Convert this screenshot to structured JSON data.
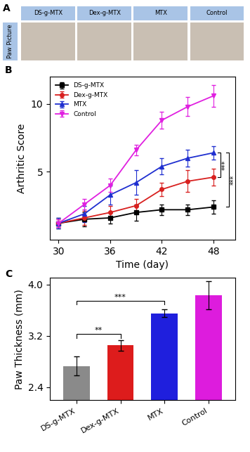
{
  "photos": {
    "label": "A",
    "row_label": "Paw Picture",
    "columns": [
      "DS-g-MTX",
      "Dex-g-MTX",
      "MTX",
      "Control"
    ]
  },
  "chart_data": [
    {
      "type": "line",
      "title": "B",
      "xlabel": "Time (day)",
      "ylabel": "Arthritic Score",
      "x": [
        30,
        33,
        36,
        39,
        42,
        45,
        48
      ],
      "xlim": [
        29,
        50.5
      ],
      "xticks": [
        30,
        36,
        42,
        48
      ],
      "ylim": [
        0,
        12
      ],
      "yticks": [
        5,
        10
      ],
      "legend": "upper left",
      "series": [
        {
          "name": "DS-g-MTX",
          "color": "#000000",
          "marker": "square",
          "values": [
            1.2,
            1.5,
            1.6,
            2.0,
            2.2,
            2.2,
            2.4
          ],
          "errors": [
            0.4,
            0.5,
            0.4,
            0.6,
            0.4,
            0.4,
            0.5
          ]
        },
        {
          "name": "Dex-g-MTX",
          "color": "#d8201f",
          "marker": "circle",
          "values": [
            1.2,
            1.6,
            2.0,
            2.5,
            3.7,
            4.3,
            4.6
          ],
          "errors": [
            0.3,
            0.5,
            0.5,
            0.5,
            0.5,
            0.8,
            0.6
          ]
        },
        {
          "name": "MTX",
          "color": "#1f2fd0",
          "marker": "triangle_up",
          "values": [
            1.2,
            1.9,
            3.3,
            4.2,
            5.4,
            6.0,
            6.4
          ],
          "errors": [
            0.4,
            0.6,
            0.7,
            0.9,
            0.6,
            0.6,
            0.5
          ]
        },
        {
          "name": "Control",
          "color": "#e020e0",
          "marker": "triangle_down",
          "values": [
            1.2,
            2.6,
            4.0,
            6.6,
            8.8,
            9.8,
            10.6
          ],
          "errors": [
            0.3,
            0.4,
            0.5,
            0.4,
            0.6,
            0.7,
            0.8
          ]
        }
      ],
      "annotations": [
        {
          "text": "***",
          "from": "MTX",
          "to": "Dex-g-MTX"
        },
        {
          "text": "***",
          "from": "MTX",
          "to": "DS-g-MTX"
        }
      ]
    },
    {
      "type": "bar",
      "title": "C",
      "ylabel": "Paw Thickness (mm)",
      "categories": [
        "DS-g-MTX",
        "Dex-g-MTX",
        "MTX",
        "Control"
      ],
      "values": [
        2.73,
        3.05,
        3.55,
        3.83
      ],
      "errors": [
        0.15,
        0.08,
        0.06,
        0.22
      ],
      "colors": [
        "#8a8a8a",
        "#dd1c1c",
        "#1f1fdd",
        "#dd1cdd"
      ],
      "ylim": [
        2.2,
        4.1
      ],
      "yticks": [
        2.4,
        3.2,
        {
          "value": 4.0,
          "label": "4.0"
        }
      ],
      "annotations": [
        {
          "text": "**",
          "from": "DS-g-MTX",
          "to": "Dex-g-MTX"
        },
        {
          "text": "***",
          "from": "DS-g-MTX",
          "to": "MTX"
        }
      ]
    }
  ]
}
